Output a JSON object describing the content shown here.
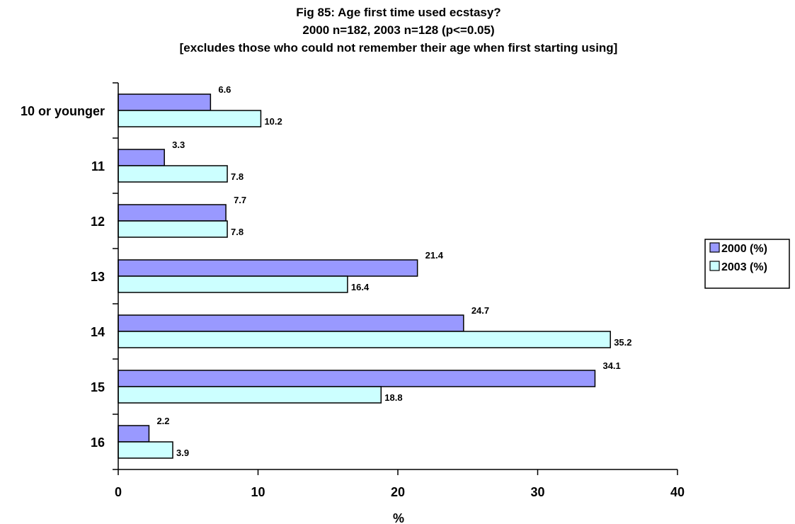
{
  "chart_data": {
    "type": "bar",
    "orientation": "horizontal",
    "title": [
      "Fig 85:   Age first time used ecstasy?",
      "2000 n=182, 2003 n=128 (p<=0.05)",
      "[excludes those who could not remember their age when first starting using]"
    ],
    "categories": [
      "10 or younger",
      "11",
      "12",
      "13",
      "14",
      "15",
      "16"
    ],
    "series": [
      {
        "name": "2000 (%)",
        "color": "#9999ff",
        "values": [
          6.6,
          3.3,
          7.7,
          21.4,
          24.7,
          34.1,
          2.2
        ]
      },
      {
        "name": "2003 (%)",
        "color": "#ccffff",
        "values": [
          10.2,
          7.8,
          7.8,
          16.4,
          35.2,
          18.8,
          3.9
        ]
      }
    ],
    "xlabel": "%",
    "ylabel": "",
    "xlim": [
      0,
      40
    ],
    "xticks": [
      0,
      10,
      20,
      30,
      40
    ],
    "grid": false,
    "legend": "right"
  }
}
